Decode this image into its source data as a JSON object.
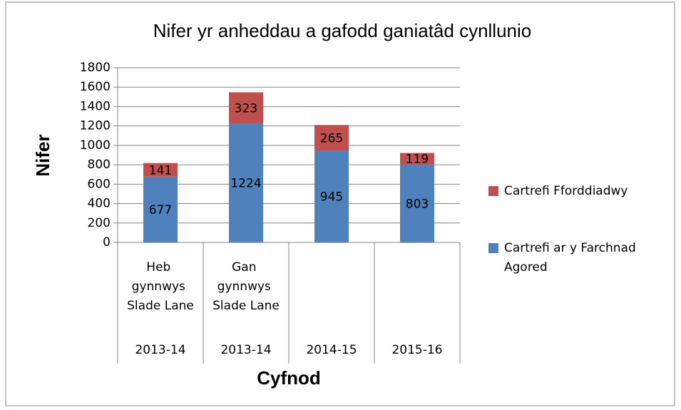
{
  "chart_data": {
    "type": "stacked_bar",
    "title": "Nifer yr anheddau a gafodd ganiatâd cynllunio",
    "y_label": "Nifer",
    "x_label": "Cyfnod",
    "categories": [
      "2013-14",
      "2013-14",
      "2014-15",
      "2015-16"
    ],
    "category_groups": [
      "Heb gynnwys Slade Lane",
      "Gan gynnwys Slade Lane",
      null,
      null
    ],
    "series": [
      {
        "name": "Cartrefi ar y Farchnad Agored",
        "color": "#4f81bd",
        "values": [
          677,
          1224,
          945,
          803
        ]
      },
      {
        "name": "Cartrefi Fforddiadwy",
        "color": "#c0504d",
        "values": [
          141,
          323,
          265,
          119
        ]
      }
    ],
    "ylim": [
      0,
      1800
    ],
    "yticks": [
      0,
      200,
      400,
      600,
      800,
      1000,
      1200,
      1400,
      1600,
      1800
    ],
    "grid": true,
    "legend": "right"
  }
}
